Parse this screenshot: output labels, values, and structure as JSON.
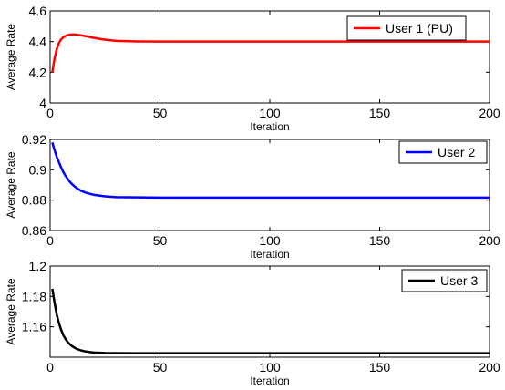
{
  "chart_data": [
    {
      "type": "line",
      "xlabel": "Iteration",
      "ylabel": "Average Rate",
      "xlim": [
        0,
        200
      ],
      "ylim": [
        4,
        4.6
      ],
      "x_ticks": [
        0,
        50,
        100,
        150,
        200
      ],
      "y_ticks": [
        4,
        4.2,
        4.4,
        4.6
      ],
      "y_tick_labels": [
        "4",
        "4.2",
        "4.4",
        "4.6"
      ],
      "grid": false,
      "legend_position": "top-right",
      "series": [
        {
          "name": "User 1 (PU)",
          "color": "#ff0000",
          "x": [
            1,
            2,
            3,
            4,
            5,
            6,
            7,
            8,
            9,
            10,
            11,
            12,
            14,
            16,
            18,
            20,
            25,
            30,
            40,
            50,
            75,
            100,
            125,
            150,
            175,
            200
          ],
          "y": [
            4.2,
            4.29,
            4.35,
            4.39,
            4.415,
            4.428,
            4.437,
            4.442,
            4.445,
            4.446,
            4.446,
            4.445,
            4.441,
            4.436,
            4.43,
            4.424,
            4.412,
            4.405,
            4.401,
            4.4,
            4.4,
            4.4,
            4.4,
            4.4,
            4.4,
            4.4
          ]
        }
      ]
    },
    {
      "type": "line",
      "xlabel": "Iteration",
      "ylabel": "Average Rate",
      "xlim": [
        0,
        200
      ],
      "ylim": [
        0.86,
        0.92
      ],
      "x_ticks": [
        0,
        50,
        100,
        150,
        200
      ],
      "y_ticks": [
        0.86,
        0.88,
        0.9,
        0.92
      ],
      "y_tick_labels": [
        "0.86",
        "0.88",
        "0.9",
        "0.92"
      ],
      "grid": false,
      "legend_position": "top-right",
      "series": [
        {
          "name": "User 2",
          "color": "#0000ff",
          "x": [
            1,
            2,
            3,
            4,
            5,
            6,
            7,
            8,
            9,
            10,
            12,
            14,
            16,
            18,
            20,
            25,
            30,
            40,
            50,
            75,
            100,
            125,
            150,
            175,
            200
          ],
          "y": [
            0.918,
            0.913,
            0.9085,
            0.905,
            0.9015,
            0.8985,
            0.896,
            0.894,
            0.892,
            0.8905,
            0.888,
            0.8862,
            0.885,
            0.8842,
            0.8835,
            0.8825,
            0.882,
            0.8818,
            0.8817,
            0.8817,
            0.8817,
            0.8817,
            0.8817,
            0.8817,
            0.8817
          ]
        }
      ]
    },
    {
      "type": "line",
      "xlabel": "Iteration",
      "ylabel": "Average Rate",
      "xlim": [
        0,
        200
      ],
      "ylim": [
        1.14,
        1.2
      ],
      "x_ticks": [
        0,
        50,
        100,
        150,
        200
      ],
      "y_ticks": [
        1.16,
        1.18,
        1.2
      ],
      "y_tick_labels": [
        "1.16",
        "1.18",
        "1.2"
      ],
      "grid": false,
      "legend_position": "top-right",
      "series": [
        {
          "name": "User 3",
          "color": "#000000",
          "x": [
            1,
            2,
            3,
            4,
            5,
            6,
            7,
            8,
            9,
            10,
            12,
            14,
            16,
            18,
            20,
            25,
            30,
            40,
            50,
            75,
            100,
            125,
            150,
            175,
            200
          ],
          "y": [
            1.185,
            1.176,
            1.168,
            1.1625,
            1.158,
            1.1545,
            1.152,
            1.15,
            1.1485,
            1.1472,
            1.1455,
            1.1445,
            1.1438,
            1.1434,
            1.1431,
            1.1428,
            1.1427,
            1.1426,
            1.1426,
            1.1426,
            1.1426,
            1.1426,
            1.1426,
            1.1426,
            1.1426
          ]
        }
      ]
    }
  ]
}
